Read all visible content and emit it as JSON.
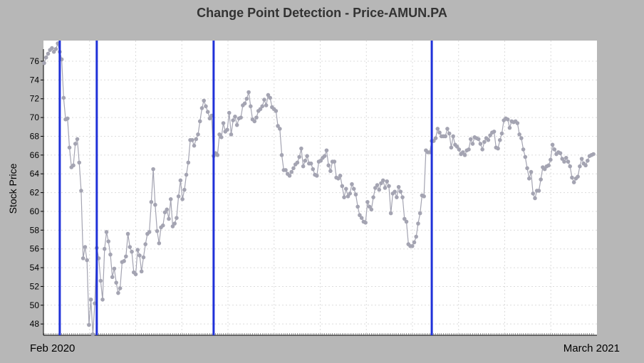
{
  "chart_data": {
    "type": "line",
    "title": "Change Point Detection - Price-AMUN.PA",
    "ylabel": "Stock Price",
    "xlabel": "",
    "x_start_label": "Feb 2020",
    "x_end_label": "March 2021",
    "ylim": [
      46.8,
      78.2
    ],
    "y_ticks": [
      48,
      50,
      52,
      54,
      56,
      58,
      60,
      62,
      64,
      66,
      68,
      70,
      72,
      74,
      76
    ],
    "grid": true,
    "series": [
      {
        "values": [
          75.8,
          76.4,
          76.8,
          77.2,
          77.4,
          77.0,
          77.3,
          77.9,
          77.0,
          76.2,
          72.1,
          69.8,
          69.9,
          66.8,
          64.7,
          64.9,
          67.2,
          67.7,
          65.2,
          62.2,
          55.0,
          56.2,
          54.8,
          47.9,
          50.6,
          46.9,
          50.2,
          56.1,
          55.0,
          52.6,
          50.6,
          56.0,
          57.8,
          56.8,
          55.4,
          53.0,
          53.9,
          52.4,
          51.3,
          51.8,
          54.6,
          54.7,
          55.2,
          57.6,
          56.2,
          55.7,
          53.5,
          53.3,
          55.9,
          55.3,
          53.6,
          55.1,
          56.5,
          57.6,
          57.8,
          61.0,
          64.5,
          60.7,
          57.9,
          56.6,
          58.3,
          58.5,
          59.9,
          60.2,
          59.2,
          61.3,
          58.4,
          58.7,
          59.3,
          61.6,
          63.3,
          61.3,
          62.3,
          63.9,
          65.2,
          67.6,
          67.6,
          67.0,
          67.7,
          68.2,
          69.6,
          71.0,
          71.8,
          71.2,
          70.6,
          69.9,
          70.2,
          65.9,
          66.2,
          66.0,
          68.2,
          67.9,
          69.4,
          68.5,
          68.7,
          70.5,
          68.2,
          69.7,
          70.1,
          69.2,
          69.9,
          70.0,
          71.3,
          71.5,
          72.0,
          72.7,
          71.2,
          69.8,
          69.6,
          70.0,
          70.7,
          70.9,
          71.2,
          71.9,
          71.3,
          72.4,
          72.1,
          71.1,
          70.9,
          70.7,
          69.1,
          68.8,
          66.0,
          64.4,
          64.4,
          64.0,
          63.8,
          64.2,
          64.6,
          65.0,
          65.2,
          65.8,
          66.7,
          64.8,
          65.4,
          65.9,
          65.1,
          65.1,
          64.5,
          63.9,
          63.8,
          65.3,
          65.4,
          65.7,
          65.9,
          66.5,
          64.9,
          64.3,
          65.3,
          65.3,
          63.6,
          63.5,
          63.8,
          62.7,
          61.5,
          62.4,
          61.6,
          61.9,
          62.9,
          62.4,
          61.8,
          60.5,
          59.6,
          59.3,
          58.9,
          58.8,
          61.0,
          60.5,
          60.2,
          61.5,
          62.5,
          62.8,
          62.3,
          63.0,
          63.3,
          62.5,
          63.2,
          62.7,
          59.8,
          61.9,
          62.1,
          61.5,
          62.6,
          62.1,
          61.5,
          59.2,
          58.9,
          56.5,
          56.3,
          56.3,
          56.7,
          57.3,
          58.7,
          59.8,
          61.7,
          61.6,
          66.5,
          66.3,
          66.3,
          67.5,
          67.5,
          67.8,
          68.8,
          68.4,
          68.0,
          68.0,
          68.0,
          68.8,
          68.3,
          66.8,
          68.0,
          67.1,
          66.9,
          66.6,
          66.1,
          66.3,
          66.0,
          66.5,
          66.6,
          67.7,
          67.2,
          67.9,
          67.8,
          67.7,
          67.2,
          66.6,
          67.4,
          67.8,
          67.6,
          68.1,
          68.4,
          68.5,
          66.8,
          66.7,
          67.6,
          68.3,
          69.7,
          69.9,
          69.8,
          68.9,
          69.6,
          69.5,
          69.6,
          69.4,
          68.2,
          67.8,
          66.6,
          65.8,
          64.6,
          63.5,
          64.2,
          61.9,
          61.4,
          62.2,
          62.2,
          63.4,
          64.7,
          64.5,
          64.8,
          64.9,
          65.5,
          67.1,
          66.6,
          66.1,
          66.3,
          66.2,
          65.6,
          65.3,
          65.7,
          65.3,
          64.8,
          63.6,
          63.1,
          63.5,
          63.7,
          64.8,
          65.6,
          65.1,
          64.9,
          65.4,
          65.9,
          66.0,
          66.1
        ]
      }
    ],
    "change_point_indices": [
      8,
      27,
      87,
      199
    ],
    "colors": {
      "background": "#b7b7b7",
      "plot_bg": "#ffffff",
      "series": "#a4a4b2",
      "change_point": "#1f31d9",
      "grid": "#dcdcdc"
    }
  }
}
